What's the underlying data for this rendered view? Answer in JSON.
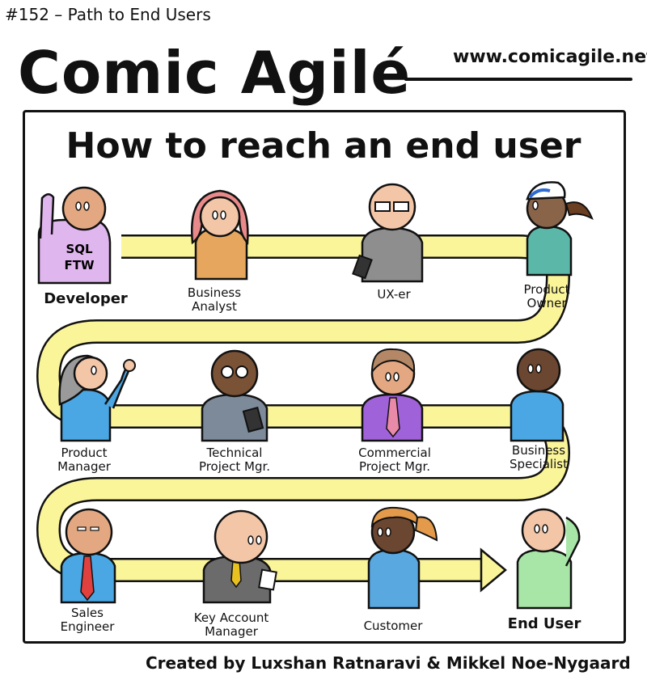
{
  "header": {
    "episode": "#152 – Path to End Users",
    "brand": "Comic Agilé",
    "url": "www.comicagile.net"
  },
  "panel": {
    "title": "How to reach an end user",
    "roles": [
      {
        "label": "Developer",
        "shirt_text_1": "SQL",
        "shirt_text_2": "FTW"
      },
      {
        "label": "Business\nAnalyst"
      },
      {
        "label": "UX-er"
      },
      {
        "label": "Product\nOwner"
      },
      {
        "label": "Product\nManager"
      },
      {
        "label": "Technical\nProject Mgr."
      },
      {
        "label": "Commercial\nProject Mgr."
      },
      {
        "label": "Business\nSpecialist"
      },
      {
        "label": "Sales\nEngineer"
      },
      {
        "label": "Key Account\nManager"
      },
      {
        "label": "Customer"
      },
      {
        "label": "End User"
      }
    ],
    "path_color": "#fbf59a"
  },
  "footer": {
    "credit": "Created by Luxshan Ratnaravi & Mikkel Noe-Nygaard"
  }
}
